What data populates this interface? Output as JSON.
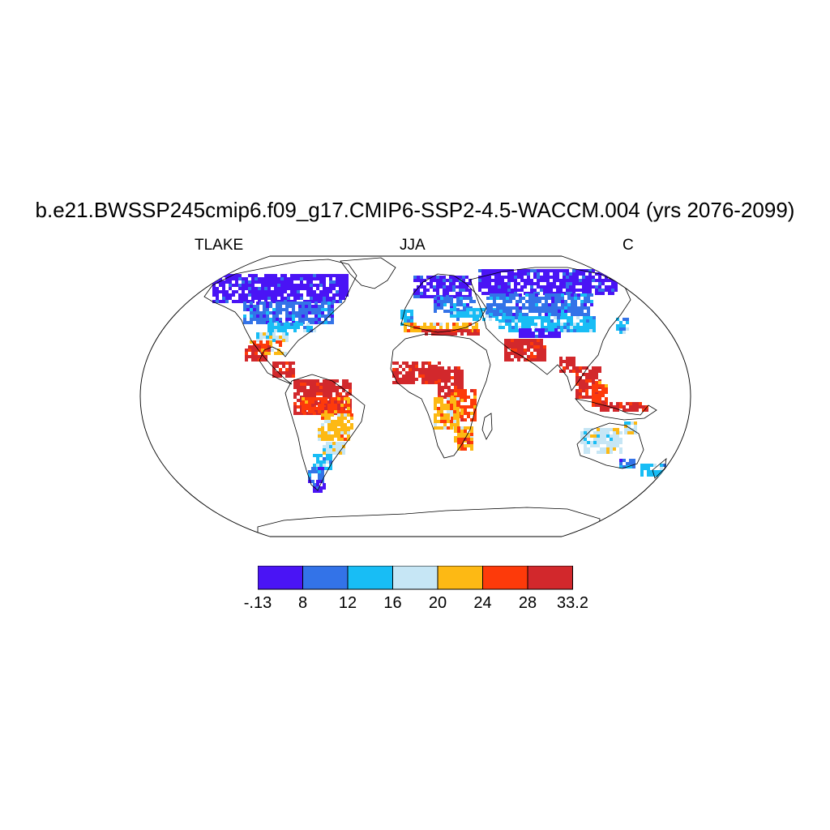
{
  "title": "b.e21.BWSSP245cmip6.f09_g17.CMIP6-SSP2-4.5-WACCM.004 (yrs 2076-2099)",
  "subtitle": {
    "left": "TLAKE",
    "center": "JJA",
    "right": "C"
  },
  "colorbar": {
    "colors": [
      "#4a14f5",
      "#3373e8",
      "#18bdf5",
      "#c6e6f5",
      "#fdb914",
      "#fd3a0a",
      "#d2282c"
    ],
    "labels": [
      "-.13",
      "8",
      "12",
      "16",
      "20",
      "24",
      "28",
      "33.2"
    ]
  },
  "colors": {
    "land_outline": "#000000",
    "ocean": "#ffffff"
  }
}
